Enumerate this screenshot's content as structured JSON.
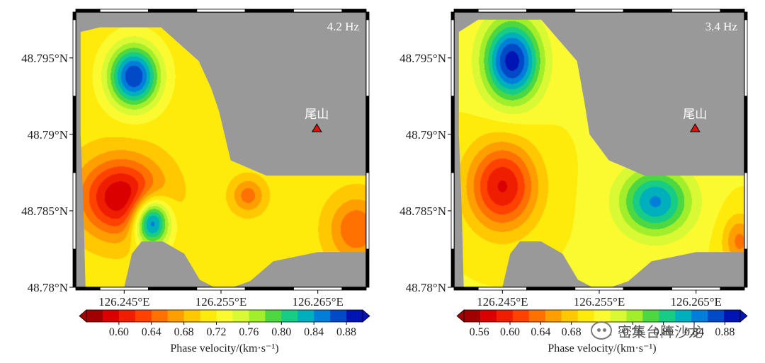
{
  "chart_data": [
    {
      "type": "heatmap",
      "panel_label": "4.2 Hz",
      "site": {
        "name": "尾山",
        "lon": 126.2649,
        "lat": 48.7904
      },
      "xlim": [
        126.24,
        126.27
      ],
      "ylim": [
        48.78,
        48.798
      ],
      "xticks": [
        126.245,
        126.255,
        126.265
      ],
      "xtick_labels": [
        "126.245°E",
        "126.255°E",
        "126.265°E"
      ],
      "yticks": [
        48.78,
        48.785,
        48.79,
        48.795
      ],
      "ytick_labels": [
        "48.78°N",
        "48.785°N",
        "48.79°N",
        "48.795°N"
      ],
      "coverage_polygon": [
        [
          126.2405,
          48.7967
        ],
        [
          126.2425,
          48.797
        ],
        [
          126.2488,
          48.797
        ],
        [
          126.2527,
          48.7948
        ],
        [
          126.254,
          48.793
        ],
        [
          126.2548,
          48.7915
        ],
        [
          126.256,
          48.7883
        ],
        [
          126.2597,
          48.7873
        ],
        [
          126.27,
          48.7873
        ],
        [
          126.27,
          48.7823
        ],
        [
          126.265,
          48.7823
        ],
        [
          126.2604,
          48.7817
        ],
        [
          126.258,
          48.7804
        ],
        [
          126.2562,
          48.78
        ],
        [
          126.2543,
          48.78
        ],
        [
          126.2528,
          48.7805
        ],
        [
          126.2512,
          48.7822
        ],
        [
          126.249,
          48.783
        ],
        [
          126.2468,
          48.783
        ],
        [
          126.2458,
          48.7822
        ],
        [
          126.245,
          48.78
        ],
        [
          126.241,
          48.78
        ],
        [
          126.2408,
          48.785
        ],
        [
          126.2405,
          48.79
        ]
      ],
      "background": 0.71,
      "anomalies": [
        {
          "label": "low",
          "lon": 126.2447,
          "lat": 48.7859,
          "value": 0.58,
          "sigma_lon": 0.003,
          "sigma_lat": 0.0018
        },
        {
          "label": "high",
          "lon": 126.2478,
          "lat": 48.7843,
          "value": 0.89,
          "sigma_lon": 0.0013,
          "sigma_lat": 0.0011
        },
        {
          "label": "high",
          "lon": 126.246,
          "lat": 48.7938,
          "value": 0.88,
          "sigma_lon": 0.0018,
          "sigma_lat": 0.0014
        },
        {
          "label": "low",
          "lon": 126.2578,
          "lat": 48.786,
          "value": 0.65,
          "sigma_lon": 0.0012,
          "sigma_lat": 0.0008
        },
        {
          "label": "low",
          "lon": 126.269,
          "lat": 48.7838,
          "value": 0.64,
          "sigma_lon": 0.002,
          "sigma_lat": 0.0015
        }
      ],
      "colorbar": {
        "min": 0.56,
        "max": 0.9,
        "ticks": [
          0.6,
          0.64,
          0.68,
          0.72,
          0.76,
          0.8,
          0.84,
          0.88
        ],
        "tick_labels": [
          "0.60",
          "0.64",
          "0.68",
          "0.72",
          "0.76",
          "0.80",
          "0.84",
          "0.88"
        ],
        "title": "Phase velocity/(km·s⁻¹)"
      }
    },
    {
      "type": "heatmap",
      "panel_label": "3.4 Hz",
      "site": {
        "name": "尾山",
        "lon": 126.2649,
        "lat": 48.7904
      },
      "xlim": [
        126.24,
        126.27
      ],
      "ylim": [
        48.78,
        48.798
      ],
      "xticks": [
        126.245,
        126.255,
        126.265
      ],
      "xtick_labels": [
        "126.245°E",
        "126.255°E",
        "126.265°E"
      ],
      "yticks": [
        48.78,
        48.785,
        48.79,
        48.795
      ],
      "ytick_labels": [
        "48.78°N",
        "48.785°N",
        "48.79°N",
        "48.795°N"
      ],
      "coverage_polygon": [
        [
          126.2405,
          48.7967
        ],
        [
          126.2425,
          48.7975
        ],
        [
          126.249,
          48.7975
        ],
        [
          126.2527,
          48.7948
        ],
        [
          126.2535,
          48.792
        ],
        [
          126.254,
          48.79
        ],
        [
          126.256,
          48.7883
        ],
        [
          126.2597,
          48.7873
        ],
        [
          126.27,
          48.7873
        ],
        [
          126.27,
          48.7823
        ],
        [
          126.265,
          48.7823
        ],
        [
          126.2604,
          48.7817
        ],
        [
          126.258,
          48.7804
        ],
        [
          126.2562,
          48.78
        ],
        [
          126.2543,
          48.78
        ],
        [
          126.2528,
          48.7805
        ],
        [
          126.2512,
          48.7822
        ],
        [
          126.249,
          48.783
        ],
        [
          126.2468,
          48.783
        ],
        [
          126.2458,
          48.7822
        ],
        [
          126.245,
          48.78
        ],
        [
          126.241,
          48.78
        ],
        [
          126.2408,
          48.785
        ],
        [
          126.2405,
          48.79
        ]
      ],
      "background": 0.71,
      "anomalies": [
        {
          "label": "low",
          "lon": 126.245,
          "lat": 48.7866,
          "value": 0.58,
          "sigma_lon": 0.0025,
          "sigma_lat": 0.002
        },
        {
          "label": "high",
          "lon": 126.246,
          "lat": 48.7948,
          "value": 0.89,
          "sigma_lon": 0.002,
          "sigma_lat": 0.0018
        },
        {
          "label": "high",
          "lon": 126.2608,
          "lat": 48.7856,
          "value": 0.84,
          "sigma_lon": 0.0025,
          "sigma_lat": 0.0015
        },
        {
          "label": "low",
          "lon": 126.2695,
          "lat": 48.783,
          "value": 0.64,
          "sigma_lon": 0.0012,
          "sigma_lat": 0.0012
        }
      ],
      "colorbar": {
        "min": 0.54,
        "max": 0.9,
        "ticks": [
          0.56,
          0.6,
          0.64,
          0.68,
          0.72,
          0.76,
          0.8,
          0.84,
          0.88
        ],
        "tick_labels": [
          "0.56",
          "0.60",
          "0.64",
          "0.68",
          "0.72",
          "0.76",
          "0.80",
          "0.84",
          "0.88"
        ],
        "title": "Phase velocity/(km·s⁻¹)"
      }
    }
  ],
  "watermark": "密集台阵沙龙",
  "colors": {
    "background_map": "#999999",
    "site_marker": "#e01010",
    "frame": "#000000"
  }
}
